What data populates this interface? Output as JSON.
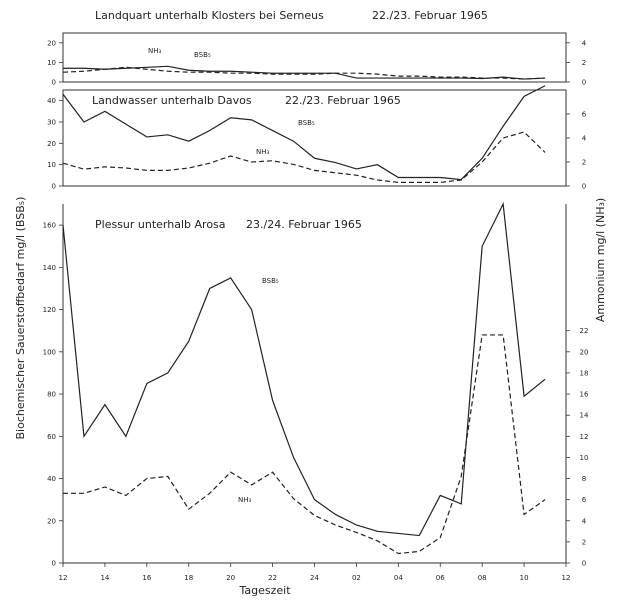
{
  "chart_data": {
    "type": "line",
    "y_left_label": "Biochemischer Sauerstoffbedarf mg/l (BSB₅)",
    "y_right_label": "Ammonium mg/l (NH₃)",
    "x_label": "Tageszeit",
    "x_ticks": [
      "12",
      "14",
      "16",
      "18",
      "20",
      "22",
      "24",
      "02",
      "04",
      "06",
      "08",
      "10",
      "12"
    ],
    "panels": [
      {
        "title": "Landquart unterhalb Klosters bei Serneus",
        "date": "22./23. Februar 1965",
        "left_ticks": [
          "0",
          "10",
          "20"
        ],
        "right_ticks": [
          "0",
          "2",
          "4"
        ],
        "ylim_left": [
          0,
          25
        ],
        "ylim_right": [
          0,
          5
        ],
        "series": [
          {
            "name": "BSB₅",
            "hours": [
              0,
              1,
              2,
              3,
              4,
              5,
              6,
              7,
              8,
              9,
              10,
              11,
              12,
              13,
              14,
              15,
              16,
              17,
              18,
              19,
              20,
              21,
              22,
              23
            ],
            "values": [
              7,
              7,
              6.5,
              7,
              7.5,
              8,
              6,
              5.5,
              5.5,
              5,
              4.5,
              4.5,
              4.5,
              4.5,
              2,
              2,
              2,
              2,
              2,
              2,
              1.8,
              2.5,
              1.5,
              2
            ]
          },
          {
            "name": "NH₃",
            "hours": [
              0,
              1,
              2,
              3,
              4,
              5,
              6,
              7,
              8,
              9,
              10,
              11,
              12,
              13,
              14,
              15,
              16,
              17,
              18,
              19,
              20,
              21,
              22,
              23
            ],
            "values": [
              1.0,
              1.1,
              1.3,
              1.5,
              1.3,
              1.1,
              1.0,
              1.0,
              0.9,
              0.9,
              0.8,
              0.8,
              0.8,
              0.9,
              0.9,
              0.8,
              0.6,
              0.6,
              0.5,
              0.5,
              0.4,
              0.4,
              0.3,
              0.4
            ]
          }
        ],
        "labels": {
          "NH₃": "NH₃",
          "BSB₅": "BSB₅"
        }
      },
      {
        "title": "Landwasser unterhalb Davos",
        "date": "22./23. Februar 1965",
        "left_ticks": [
          "0",
          "10",
          "20",
          "30",
          "40"
        ],
        "right_ticks": [
          "0",
          "2",
          "4",
          "6"
        ],
        "ylim_left": [
          0,
          45
        ],
        "ylim_right": [
          0,
          8
        ],
        "series": [
          {
            "name": "BSB₅",
            "hours": [
              0,
              1,
              2,
              3,
              4,
              5,
              6,
              7,
              8,
              9,
              10,
              11,
              12,
              13,
              14,
              15,
              16,
              17,
              18,
              19,
              20,
              21,
              22,
              23
            ],
            "values": [
              43,
              30,
              35,
              29,
              23,
              24,
              21,
              26,
              32,
              31,
              26,
              21,
              13,
              11,
              8,
              10,
              4,
              4,
              4,
              3,
              13,
              28,
              42,
              47
            ]
          },
          {
            "name": "NH₃",
            "hours": [
              0,
              1,
              2,
              3,
              4,
              5,
              6,
              7,
              8,
              9,
              10,
              11,
              12,
              13,
              14,
              15,
              16,
              17,
              18,
              19,
              20,
              21,
              22,
              23
            ],
            "values": [
              1.9,
              1.4,
              1.6,
              1.5,
              1.3,
              1.3,
              1.5,
              1.9,
              2.5,
              2.0,
              2.1,
              1.8,
              1.3,
              1.1,
              0.9,
              0.5,
              0.3,
              0.3,
              0.3,
              0.5,
              2.0,
              4.0,
              4.5,
              2.8
            ]
          }
        ],
        "labels": {
          "BSB₅": "BSB₅",
          "NH₃": "NH₃"
        }
      },
      {
        "title": "Plessur unterhalb Arosa",
        "date": "23./24. Februar 1965",
        "left_ticks": [
          "0",
          "20",
          "40",
          "60",
          "80",
          "100",
          "120",
          "140",
          "160"
        ],
        "right_ticks": [
          "0",
          "2",
          "4",
          "6",
          "8",
          "10",
          "12",
          "14",
          "16",
          "18",
          "20",
          "22"
        ],
        "ylim_left": [
          0,
          170
        ],
        "ylim_right": [
          0,
          34
        ],
        "series": [
          {
            "name": "BSB₅",
            "hours": [
              0,
              1,
              2,
              3,
              4,
              5,
              6,
              7,
              8,
              9,
              10,
              11,
              12,
              13,
              14,
              15,
              16,
              17,
              18,
              19,
              20,
              21,
              22,
              23
            ],
            "values": [
              160,
              60,
              75,
              60,
              85,
              90,
              105,
              130,
              135,
              120,
              77,
              50,
              30,
              23,
              18,
              15,
              14,
              13,
              32,
              28,
              150,
              170,
              79,
              87
            ]
          },
          {
            "name": "NH₃",
            "hours": [
              0,
              1,
              2,
              3,
              4,
              5,
              6,
              7,
              8,
              9,
              10,
              11,
              12,
              13,
              14,
              15,
              16,
              17,
              18,
              19,
              20,
              21,
              22,
              23
            ],
            "values": [
              6.6,
              6.6,
              7.2,
              6.4,
              8.0,
              8.2,
              5.1,
              6.6,
              8.6,
              7.4,
              8.6,
              6.1,
              4.5,
              3.6,
              2.9,
              2.1,
              0.9,
              1.1,
              2.4,
              8.2,
              21.6,
              21.6,
              4.6,
              6.0
            ]
          }
        ],
        "labels": {
          "BSB₅": "BSB₅",
          "NH₃": "NH₃"
        }
      }
    ]
  }
}
